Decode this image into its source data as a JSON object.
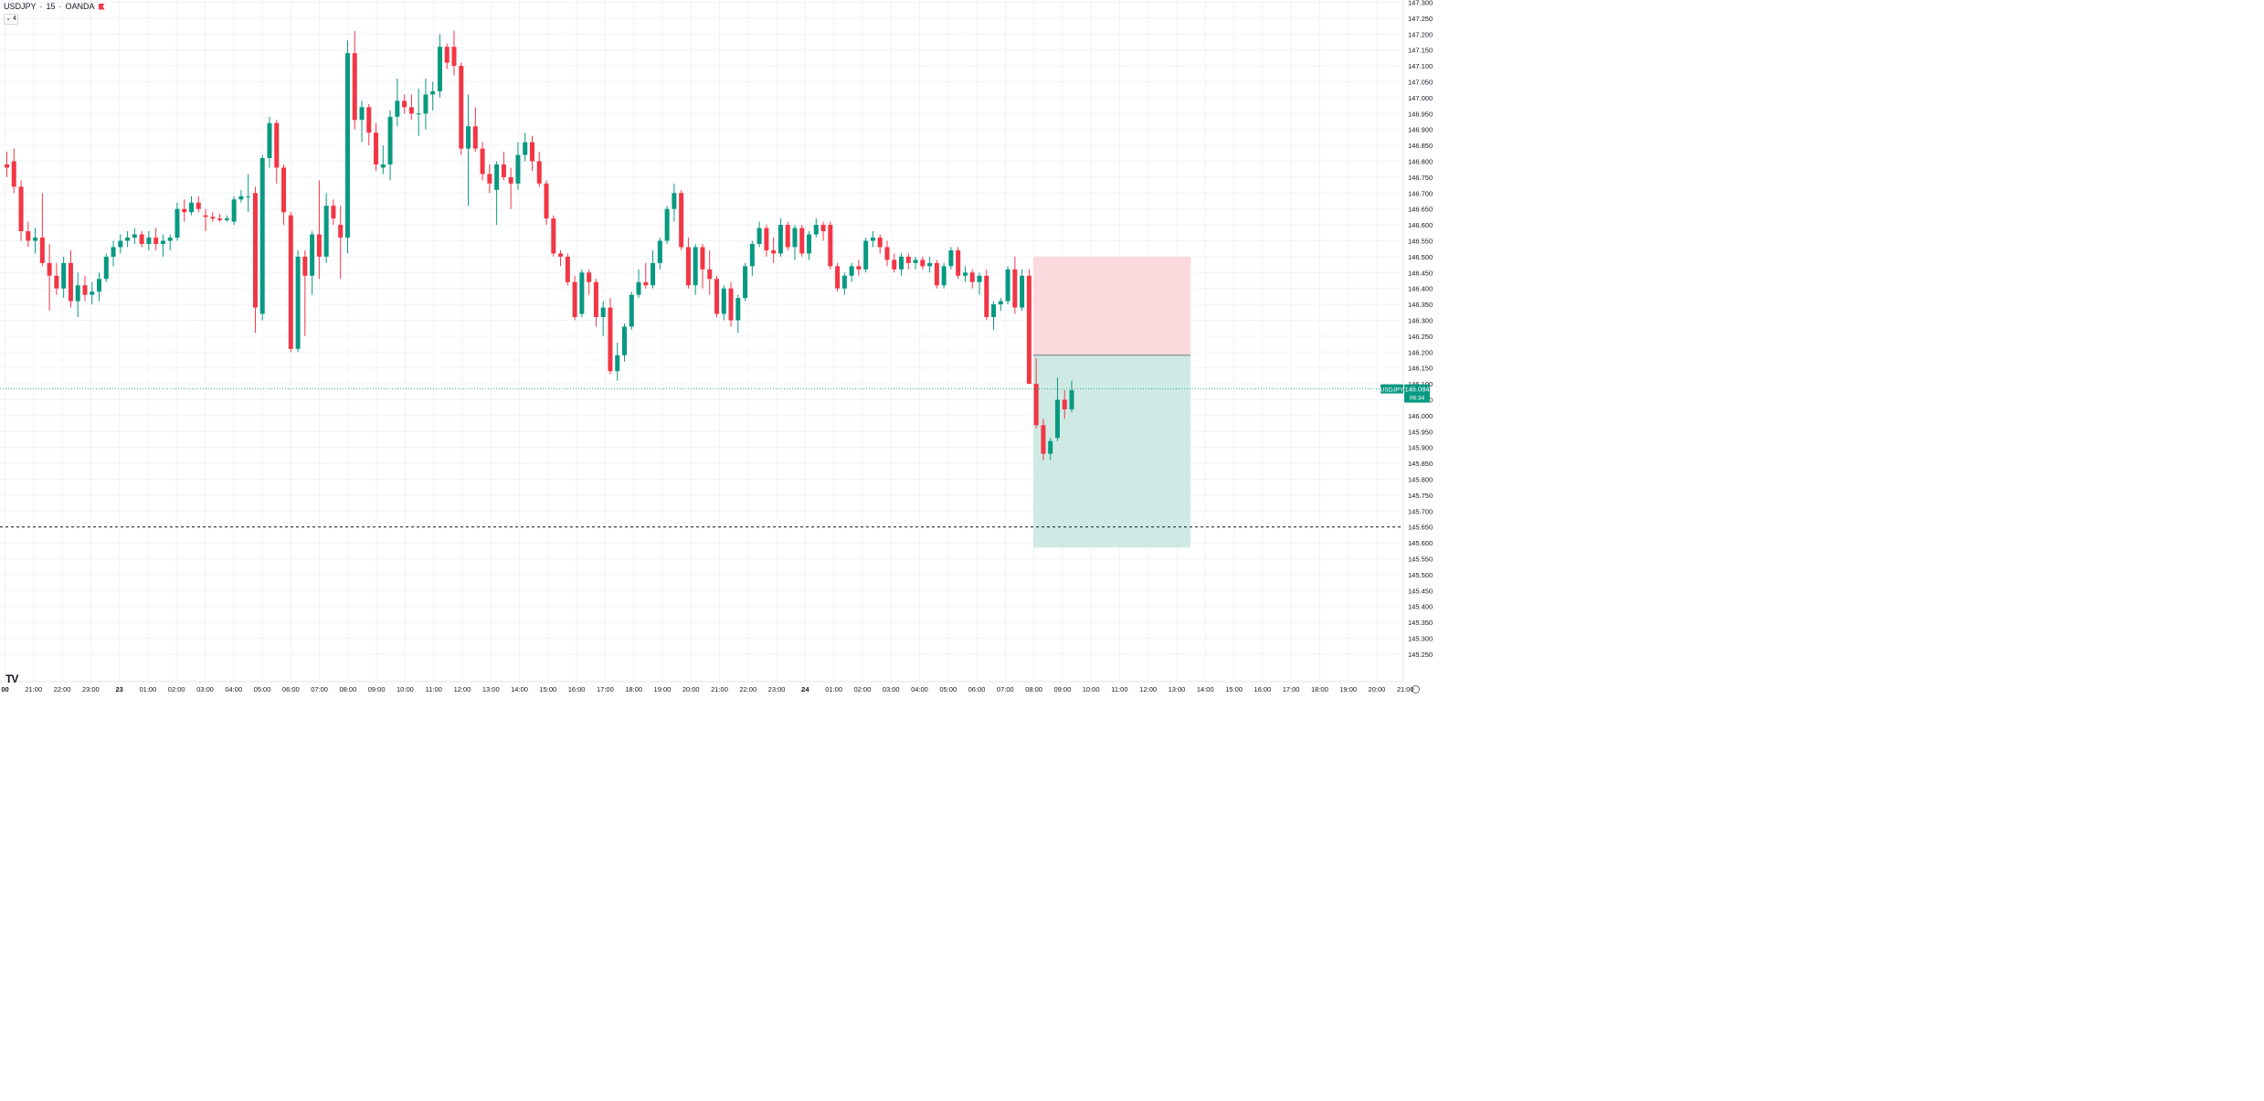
{
  "header": {
    "symbol": "USDJPY",
    "interval": "15",
    "broker": "OANDA"
  },
  "collapse_label": "4",
  "colors": {
    "up": "#089981",
    "down": "#f23645",
    "grid": "#f0f3fa",
    "axis_text": "#131722",
    "tp_zone": "#cfeae4",
    "sl_zone": "#fbd9dc"
  },
  "chart_data": {
    "type": "candlestick",
    "symbol": "USDJPY",
    "timeframe": "15",
    "ylim": [
      145.2,
      147.3
    ],
    "y_ticks": [
      "147.300",
      "147.250",
      "147.200",
      "147.150",
      "147.100",
      "147.050",
      "147.000",
      "146.950",
      "146.900",
      "146.850",
      "146.800",
      "146.750",
      "146.700",
      "146.650",
      "146.600",
      "146.550",
      "146.500",
      "146.450",
      "146.400",
      "146.350",
      "146.300",
      "146.250",
      "146.200",
      "146.150",
      "146.100",
      "146.050",
      "146.000",
      "145.950",
      "145.900",
      "145.850",
      "145.800",
      "145.750",
      "145.700",
      "145.650",
      "145.600",
      "145.550",
      "145.500",
      "145.450",
      "145.400",
      "145.350",
      "145.300",
      "145.250"
    ],
    "x_ticks": [
      "00",
      "21:00",
      "22:00",
      "23:00",
      "23",
      "01:00",
      "02:00",
      "03:00",
      "04:00",
      "05:00",
      "06:00",
      "07:00",
      "08:00",
      "09:00",
      "10:00",
      "11:00",
      "12:00",
      "13:00",
      "14:00",
      "15:00",
      "16:00",
      "17:00",
      "18:00",
      "19:00",
      "20:00",
      "21:00",
      "22:00",
      "23:00",
      "24",
      "01:00",
      "02:00",
      "03:00",
      "04:00",
      "05:00",
      "06:00",
      "07:00",
      "08:00",
      "09:00",
      "10:00",
      "11:00",
      "12:00",
      "13:00",
      "14:00",
      "15:00",
      "16:00",
      "17:00",
      "18:00",
      "19:00",
      "20:00",
      "21:00"
    ],
    "candles": [
      {
        "o": 146.79,
        "h": 146.83,
        "l": 146.75,
        "c": 146.78
      },
      {
        "o": 146.8,
        "h": 146.84,
        "l": 146.7,
        "c": 146.72
      },
      {
        "o": 146.72,
        "h": 146.74,
        "l": 146.55,
        "c": 146.58
      },
      {
        "o": 146.58,
        "h": 146.61,
        "l": 146.53,
        "c": 146.55
      },
      {
        "o": 146.55,
        "h": 146.59,
        "l": 146.51,
        "c": 146.56
      },
      {
        "o": 146.56,
        "h": 146.7,
        "l": 146.47,
        "c": 146.48
      },
      {
        "o": 146.48,
        "h": 146.54,
        "l": 146.33,
        "c": 146.44
      },
      {
        "o": 146.44,
        "h": 146.48,
        "l": 146.38,
        "c": 146.4
      },
      {
        "o": 146.4,
        "h": 146.5,
        "l": 146.37,
        "c": 146.48
      },
      {
        "o": 146.48,
        "h": 146.52,
        "l": 146.34,
        "c": 146.36
      },
      {
        "o": 146.36,
        "h": 146.45,
        "l": 146.31,
        "c": 146.41
      },
      {
        "o": 146.41,
        "h": 146.44,
        "l": 146.36,
        "c": 146.38
      },
      {
        "o": 146.38,
        "h": 146.42,
        "l": 146.35,
        "c": 146.39
      },
      {
        "o": 146.39,
        "h": 146.45,
        "l": 146.36,
        "c": 146.43
      },
      {
        "o": 146.43,
        "h": 146.51,
        "l": 146.42,
        "c": 146.5
      },
      {
        "o": 146.5,
        "h": 146.55,
        "l": 146.47,
        "c": 146.53
      },
      {
        "o": 146.53,
        "h": 146.57,
        "l": 146.51,
        "c": 146.55
      },
      {
        "o": 146.55,
        "h": 146.58,
        "l": 146.53,
        "c": 146.56
      },
      {
        "o": 146.56,
        "h": 146.59,
        "l": 146.54,
        "c": 146.57
      },
      {
        "o": 146.57,
        "h": 146.58,
        "l": 146.53,
        "c": 146.54
      },
      {
        "o": 146.54,
        "h": 146.58,
        "l": 146.52,
        "c": 146.56
      },
      {
        "o": 146.56,
        "h": 146.59,
        "l": 146.52,
        "c": 146.54
      },
      {
        "o": 146.54,
        "h": 146.57,
        "l": 146.5,
        "c": 146.55
      },
      {
        "o": 146.55,
        "h": 146.57,
        "l": 146.52,
        "c": 146.56
      },
      {
        "o": 146.56,
        "h": 146.67,
        "l": 146.55,
        "c": 146.65
      },
      {
        "o": 146.65,
        "h": 146.68,
        "l": 146.61,
        "c": 146.64
      },
      {
        "o": 146.64,
        "h": 146.69,
        "l": 146.63,
        "c": 146.67
      },
      {
        "o": 146.67,
        "h": 146.69,
        "l": 146.64,
        "c": 146.65
      },
      {
        "o": 146.63,
        "h": 146.65,
        "l": 146.58,
        "c": 146.625
      },
      {
        "o": 146.625,
        "h": 146.64,
        "l": 146.61,
        "c": 146.62
      },
      {
        "o": 146.62,
        "h": 146.635,
        "l": 146.61,
        "c": 146.615
      },
      {
        "o": 146.615,
        "h": 146.63,
        "l": 146.61,
        "c": 146.62
      },
      {
        "o": 146.61,
        "h": 146.69,
        "l": 146.6,
        "c": 146.68
      },
      {
        "o": 146.68,
        "h": 146.71,
        "l": 146.67,
        "c": 146.69
      },
      {
        "o": 146.69,
        "h": 146.76,
        "l": 146.64,
        "c": 146.69
      },
      {
        "o": 146.7,
        "h": 146.72,
        "l": 146.26,
        "c": 146.34
      },
      {
        "o": 146.32,
        "h": 146.82,
        "l": 146.3,
        "c": 146.81
      },
      {
        "o": 146.81,
        "h": 146.94,
        "l": 146.78,
        "c": 146.92
      },
      {
        "o": 146.92,
        "h": 146.93,
        "l": 146.73,
        "c": 146.78
      },
      {
        "o": 146.78,
        "h": 146.79,
        "l": 146.6,
        "c": 146.64
      },
      {
        "o": 146.63,
        "h": 146.64,
        "l": 146.2,
        "c": 146.21
      },
      {
        "o": 146.21,
        "h": 146.52,
        "l": 146.2,
        "c": 146.5
      },
      {
        "o": 146.5,
        "h": 146.52,
        "l": 146.25,
        "c": 146.44
      },
      {
        "o": 146.44,
        "h": 146.58,
        "l": 146.38,
        "c": 146.57
      },
      {
        "o": 146.57,
        "h": 146.74,
        "l": 146.43,
        "c": 146.5
      },
      {
        "o": 146.5,
        "h": 146.7,
        "l": 146.48,
        "c": 146.66
      },
      {
        "o": 146.66,
        "h": 146.68,
        "l": 146.6,
        "c": 146.62
      },
      {
        "o": 146.6,
        "h": 146.66,
        "l": 146.43,
        "c": 146.56
      },
      {
        "o": 146.56,
        "h": 147.18,
        "l": 146.51,
        "c": 147.14
      },
      {
        "o": 147.14,
        "h": 147.21,
        "l": 146.9,
        "c": 146.93
      },
      {
        "o": 146.93,
        "h": 146.99,
        "l": 146.86,
        "c": 146.97
      },
      {
        "o": 146.97,
        "h": 146.98,
        "l": 146.85,
        "c": 146.89
      },
      {
        "o": 146.89,
        "h": 146.92,
        "l": 146.77,
        "c": 146.79
      },
      {
        "o": 146.78,
        "h": 146.85,
        "l": 146.76,
        "c": 146.79
      },
      {
        "o": 146.79,
        "h": 146.96,
        "l": 146.74,
        "c": 146.94
      },
      {
        "o": 146.94,
        "h": 147.06,
        "l": 146.91,
        "c": 146.99
      },
      {
        "o": 146.99,
        "h": 147.01,
        "l": 146.95,
        "c": 146.97
      },
      {
        "o": 146.97,
        "h": 147.01,
        "l": 146.93,
        "c": 146.95
      },
      {
        "o": 146.95,
        "h": 147.03,
        "l": 146.88,
        "c": 146.95
      },
      {
        "o": 146.95,
        "h": 147.06,
        "l": 146.9,
        "c": 147.01
      },
      {
        "o": 147.01,
        "h": 147.05,
        "l": 146.96,
        "c": 147.02
      },
      {
        "o": 147.02,
        "h": 147.2,
        "l": 147.0,
        "c": 147.16
      },
      {
        "o": 147.16,
        "h": 147.17,
        "l": 147.09,
        "c": 147.11
      },
      {
        "o": 147.16,
        "h": 147.21,
        "l": 147.07,
        "c": 147.1
      },
      {
        "o": 147.1,
        "h": 147.11,
        "l": 146.82,
        "c": 146.84
      },
      {
        "o": 146.84,
        "h": 147.01,
        "l": 146.66,
        "c": 146.91
      },
      {
        "o": 146.91,
        "h": 146.97,
        "l": 146.83,
        "c": 146.84
      },
      {
        "o": 146.84,
        "h": 146.86,
        "l": 146.74,
        "c": 146.76
      },
      {
        "o": 146.76,
        "h": 146.79,
        "l": 146.7,
        "c": 146.73
      },
      {
        "o": 146.71,
        "h": 146.8,
        "l": 146.6,
        "c": 146.79
      },
      {
        "o": 146.79,
        "h": 146.83,
        "l": 146.74,
        "c": 146.75
      },
      {
        "o": 146.75,
        "h": 146.78,
        "l": 146.65,
        "c": 146.73
      },
      {
        "o": 146.73,
        "h": 146.86,
        "l": 146.71,
        "c": 146.82
      },
      {
        "o": 146.82,
        "h": 146.89,
        "l": 146.8,
        "c": 146.86
      },
      {
        "o": 146.86,
        "h": 146.88,
        "l": 146.77,
        "c": 146.8
      },
      {
        "o": 146.8,
        "h": 146.83,
        "l": 146.72,
        "c": 146.73
      },
      {
        "o": 146.73,
        "h": 146.74,
        "l": 146.6,
        "c": 146.62
      },
      {
        "o": 146.62,
        "h": 146.63,
        "l": 146.5,
        "c": 146.51
      },
      {
        "o": 146.51,
        "h": 146.52,
        "l": 146.47,
        "c": 146.5
      },
      {
        "o": 146.5,
        "h": 146.51,
        "l": 146.41,
        "c": 146.42
      },
      {
        "o": 146.42,
        "h": 146.44,
        "l": 146.3,
        "c": 146.31
      },
      {
        "o": 146.32,
        "h": 146.46,
        "l": 146.31,
        "c": 146.45
      },
      {
        "o": 146.45,
        "h": 146.46,
        "l": 146.38,
        "c": 146.42
      },
      {
        "o": 146.42,
        "h": 146.43,
        "l": 146.28,
        "c": 146.31
      },
      {
        "o": 146.31,
        "h": 146.36,
        "l": 146.25,
        "c": 146.34
      },
      {
        "o": 146.34,
        "h": 146.37,
        "l": 146.13,
        "c": 146.14
      },
      {
        "o": 146.14,
        "h": 146.23,
        "l": 146.11,
        "c": 146.19
      },
      {
        "o": 146.19,
        "h": 146.29,
        "l": 146.17,
        "c": 146.28
      },
      {
        "o": 146.28,
        "h": 146.39,
        "l": 146.27,
        "c": 146.38
      },
      {
        "o": 146.38,
        "h": 146.46,
        "l": 146.37,
        "c": 146.42
      },
      {
        "o": 146.42,
        "h": 146.48,
        "l": 146.4,
        "c": 146.41
      },
      {
        "o": 146.41,
        "h": 146.52,
        "l": 146.4,
        "c": 146.48
      },
      {
        "o": 146.48,
        "h": 146.56,
        "l": 146.46,
        "c": 146.55
      },
      {
        "o": 146.55,
        "h": 146.66,
        "l": 146.54,
        "c": 146.65
      },
      {
        "o": 146.65,
        "h": 146.73,
        "l": 146.61,
        "c": 146.7
      },
      {
        "o": 146.7,
        "h": 146.71,
        "l": 146.52,
        "c": 146.53
      },
      {
        "o": 146.53,
        "h": 146.56,
        "l": 146.4,
        "c": 146.41
      },
      {
        "o": 146.41,
        "h": 146.54,
        "l": 146.38,
        "c": 146.53
      },
      {
        "o": 146.53,
        "h": 146.54,
        "l": 146.4,
        "c": 146.46
      },
      {
        "o": 146.46,
        "h": 146.52,
        "l": 146.38,
        "c": 146.43
      },
      {
        "o": 146.43,
        "h": 146.44,
        "l": 146.31,
        "c": 146.32
      },
      {
        "o": 146.32,
        "h": 146.41,
        "l": 146.3,
        "c": 146.4
      },
      {
        "o": 146.4,
        "h": 146.42,
        "l": 146.28,
        "c": 146.3
      },
      {
        "o": 146.3,
        "h": 146.38,
        "l": 146.26,
        "c": 146.37
      },
      {
        "o": 146.37,
        "h": 146.48,
        "l": 146.36,
        "c": 146.47
      },
      {
        "o": 146.47,
        "h": 146.55,
        "l": 146.44,
        "c": 146.54
      },
      {
        "o": 146.54,
        "h": 146.61,
        "l": 146.53,
        "c": 146.59
      },
      {
        "o": 146.59,
        "h": 146.6,
        "l": 146.5,
        "c": 146.52
      },
      {
        "o": 146.52,
        "h": 146.56,
        "l": 146.48,
        "c": 146.51
      },
      {
        "o": 146.51,
        "h": 146.62,
        "l": 146.5,
        "c": 146.6
      },
      {
        "o": 146.6,
        "h": 146.61,
        "l": 146.52,
        "c": 146.53
      },
      {
        "o": 146.53,
        "h": 146.6,
        "l": 146.49,
        "c": 146.59
      },
      {
        "o": 146.59,
        "h": 146.6,
        "l": 146.5,
        "c": 146.51
      },
      {
        "o": 146.51,
        "h": 146.58,
        "l": 146.49,
        "c": 146.57
      },
      {
        "o": 146.57,
        "h": 146.62,
        "l": 146.56,
        "c": 146.6
      },
      {
        "o": 146.6,
        "h": 146.61,
        "l": 146.55,
        "c": 146.58
      },
      {
        "o": 146.6,
        "h": 146.61,
        "l": 146.46,
        "c": 146.47
      },
      {
        "o": 146.47,
        "h": 146.48,
        "l": 146.39,
        "c": 146.4
      },
      {
        "o": 146.4,
        "h": 146.45,
        "l": 146.38,
        "c": 146.44
      },
      {
        "o": 146.44,
        "h": 146.48,
        "l": 146.42,
        "c": 146.47
      },
      {
        "o": 146.47,
        "h": 146.49,
        "l": 146.44,
        "c": 146.46
      },
      {
        "o": 146.46,
        "h": 146.56,
        "l": 146.45,
        "c": 146.55
      },
      {
        "o": 146.55,
        "h": 146.58,
        "l": 146.53,
        "c": 146.56
      },
      {
        "o": 146.56,
        "h": 146.57,
        "l": 146.51,
        "c": 146.53
      },
      {
        "o": 146.53,
        "h": 146.55,
        "l": 146.47,
        "c": 146.49
      },
      {
        "o": 146.49,
        "h": 146.51,
        "l": 146.45,
        "c": 146.46
      },
      {
        "o": 146.46,
        "h": 146.51,
        "l": 146.44,
        "c": 146.5
      },
      {
        "o": 146.5,
        "h": 146.51,
        "l": 146.46,
        "c": 146.48
      },
      {
        "o": 146.48,
        "h": 146.5,
        "l": 146.46,
        "c": 146.49
      },
      {
        "o": 146.49,
        "h": 146.5,
        "l": 146.46,
        "c": 146.47
      },
      {
        "o": 146.47,
        "h": 146.5,
        "l": 146.45,
        "c": 146.48
      },
      {
        "o": 146.48,
        "h": 146.49,
        "l": 146.4,
        "c": 146.41
      },
      {
        "o": 146.41,
        "h": 146.48,
        "l": 146.4,
        "c": 146.47
      },
      {
        "o": 146.47,
        "h": 146.53,
        "l": 146.46,
        "c": 146.52
      },
      {
        "o": 146.52,
        "h": 146.53,
        "l": 146.43,
        "c": 146.44
      },
      {
        "o": 146.44,
        "h": 146.47,
        "l": 146.42,
        "c": 146.45
      },
      {
        "o": 146.45,
        "h": 146.46,
        "l": 146.4,
        "c": 146.42
      },
      {
        "o": 146.42,
        "h": 146.45,
        "l": 146.38,
        "c": 146.44
      },
      {
        "o": 146.44,
        "h": 146.46,
        "l": 146.3,
        "c": 146.31
      },
      {
        "o": 146.31,
        "h": 146.36,
        "l": 146.27,
        "c": 146.35
      },
      {
        "o": 146.35,
        "h": 146.37,
        "l": 146.33,
        "c": 146.36
      },
      {
        "o": 146.36,
        "h": 146.47,
        "l": 146.35,
        "c": 146.46
      },
      {
        "o": 146.46,
        "h": 146.5,
        "l": 146.32,
        "c": 146.34
      },
      {
        "o": 146.34,
        "h": 146.46,
        "l": 146.33,
        "c": 146.44
      },
      {
        "o": 146.44,
        "h": 146.46,
        "l": 146.12,
        "c": 146.1
      },
      {
        "o": 146.1,
        "h": 146.18,
        "l": 145.96,
        "c": 145.97
      },
      {
        "o": 145.97,
        "h": 145.99,
        "l": 145.86,
        "c": 145.88
      },
      {
        "o": 145.88,
        "h": 145.93,
        "l": 145.86,
        "c": 145.92
      },
      {
        "o": 145.93,
        "h": 146.12,
        "l": 145.92,
        "c": 146.05
      },
      {
        "o": 146.05,
        "h": 146.08,
        "l": 145.99,
        "c": 146.02
      },
      {
        "o": 146.02,
        "h": 146.11,
        "l": 146.01,
        "c": 146.08
      }
    ],
    "current_price": 146.084,
    "horizontal_level": 145.65,
    "position": {
      "type": "long",
      "entry": 146.19,
      "stop": 146.5,
      "target": 145.585
    }
  },
  "price_label": {
    "symbol": "USDJPY",
    "price": "146.084",
    "countdown": "06:34"
  }
}
